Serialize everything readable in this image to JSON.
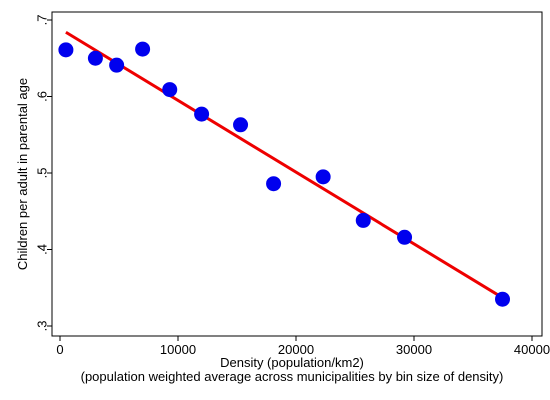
{
  "chart_data": {
    "type": "scatter",
    "xlabel": "Density (population/km2)",
    "xlabel_sub": "(population weighted average across municipalities by bin size of density)",
    "ylabel": "Children per adult in parental age",
    "xlim": [
      0,
      40000
    ],
    "ylim": [
      0.3,
      0.7
    ],
    "x_ticks": [
      0,
      10000,
      20000,
      30000,
      40000
    ],
    "x_tick_labels": [
      "0",
      "10000",
      "20000",
      "30000",
      "40000"
    ],
    "y_ticks": [
      0.3,
      0.4,
      0.5,
      0.6,
      0.7
    ],
    "y_tick_labels": [
      ".3",
      ".4",
      ".5",
      ".6",
      ".7"
    ],
    "grid": false,
    "series": [
      {
        "kind": "scatter",
        "color": "#0000ee",
        "points": [
          {
            "x": 500,
            "y": 0.661
          },
          {
            "x": 3000,
            "y": 0.65
          },
          {
            "x": 4800,
            "y": 0.641
          },
          {
            "x": 7000,
            "y": 0.662
          },
          {
            "x": 9300,
            "y": 0.609
          },
          {
            "x": 12000,
            "y": 0.577
          },
          {
            "x": 15300,
            "y": 0.563
          },
          {
            "x": 18100,
            "y": 0.486
          },
          {
            "x": 22300,
            "y": 0.495
          },
          {
            "x": 25700,
            "y": 0.438
          },
          {
            "x": 29200,
            "y": 0.416
          },
          {
            "x": 37500,
            "y": 0.335
          }
        ]
      },
      {
        "kind": "line",
        "color": "#ee0000",
        "points": [
          {
            "x": 500,
            "y": 0.684
          },
          {
            "x": 37500,
            "y": 0.337
          }
        ]
      }
    ]
  }
}
